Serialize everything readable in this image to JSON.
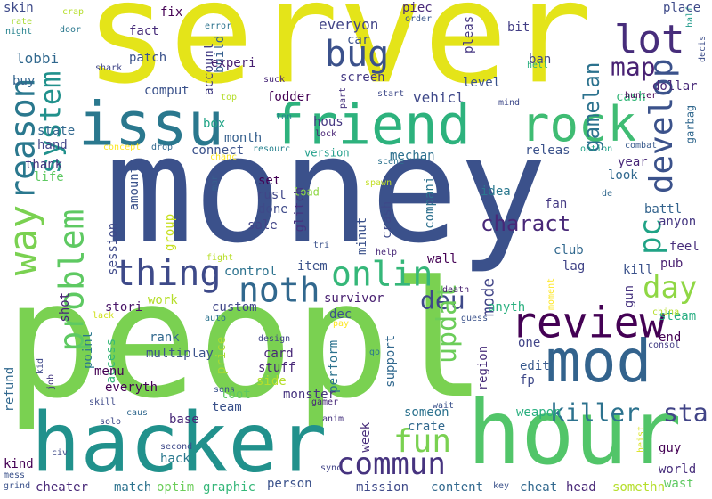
{
  "words": [
    {
      "text": "server",
      "color": "#e4e419"
    },
    {
      "text": "money",
      "color": "#3b518b"
    },
    {
      "text": "peopl",
      "color": "#7ad151"
    },
    {
      "text": "hacker",
      "color": "#21918c"
    },
    {
      "text": "hour",
      "color": "#52c569"
    },
    {
      "text": "issu",
      "color": "#2a788e"
    },
    {
      "text": "friend",
      "color": "#2db27d"
    },
    {
      "text": "rock",
      "color": "#3fbc73"
    },
    {
      "text": "mod",
      "color": "#33638d"
    },
    {
      "text": "review",
      "color": "#440154"
    },
    {
      "text": "way",
      "color": "#7ad151"
    },
    {
      "text": "reason",
      "color": "#2a788e"
    },
    {
      "text": "system",
      "color": "#21918c"
    },
    {
      "text": "problem",
      "color": "#5ec962"
    },
    {
      "text": "thing",
      "color": "#3e4a89"
    },
    {
      "text": "noth",
      "color": "#31688e"
    },
    {
      "text": "onlin",
      "color": "#35b779"
    },
    {
      "text": "bug",
      "color": "#3b518b"
    },
    {
      "text": "lot",
      "color": "#472d7b"
    },
    {
      "text": "map",
      "color": "#482173"
    },
    {
      "text": "develop",
      "color": "#3b528b"
    },
    {
      "text": "pc",
      "color": "#20a386"
    },
    {
      "text": "day",
      "color": "#8fd744"
    },
    {
      "text": "deu",
      "color": "#3e4989"
    },
    {
      "text": "commun",
      "color": "#46337f"
    },
    {
      "text": "fun",
      "color": "#7ad151"
    },
    {
      "text": "killer",
      "color": "#2c728e"
    },
    {
      "text": "sta",
      "color": "#414487"
    },
    {
      "text": "charact",
      "color": "#482878"
    },
    {
      "text": "updat",
      "color": "#6ccd5a"
    },
    {
      "text": "gamelan",
      "color": "#2c728e"
    },
    {
      "text": "mode",
      "color": "#414487"
    },
    {
      "text": "skin",
      "color": "#3e4a89"
    },
    {
      "text": "rate",
      "color": "#a8db34"
    },
    {
      "text": "night",
      "color": "#26828e"
    },
    {
      "text": "crap",
      "color": "#b5de2b"
    },
    {
      "text": "door",
      "color": "#2a788e"
    },
    {
      "text": "half",
      "color": "#1f9a8a"
    },
    {
      "text": "lobbi",
      "color": "#31688e"
    },
    {
      "text": "buy",
      "color": "#33638d"
    },
    {
      "text": "shark",
      "color": "#404688"
    },
    {
      "text": "fact",
      "color": "#472c7a"
    },
    {
      "text": "patch",
      "color": "#3b528b"
    },
    {
      "text": "fix",
      "color": "#440154"
    },
    {
      "text": "error",
      "color": "#2c738e"
    },
    {
      "text": "build",
      "color": "#355f8d"
    },
    {
      "text": "account",
      "color": "#433e85"
    },
    {
      "text": "experi",
      "color": "#482071"
    },
    {
      "text": "comput",
      "color": "#3b528b"
    },
    {
      "text": "top",
      "color": "#b5de2b"
    },
    {
      "text": "everyon",
      "color": "#414487"
    },
    {
      "text": "car",
      "color": "#3b528b"
    },
    {
      "text": "screen",
      "color": "#443983"
    },
    {
      "text": "piec",
      "color": "#482878"
    },
    {
      "text": "order",
      "color": "#39568c"
    },
    {
      "text": "bit",
      "color": "#433e85"
    },
    {
      "text": "ban",
      "color": "#3f4788"
    },
    {
      "text": "hell",
      "color": "#29af7f"
    },
    {
      "text": "place",
      "color": "#3e4a89"
    },
    {
      "text": "decis",
      "color": "#3d4e8a"
    },
    {
      "text": "dollar",
      "color": "#482979"
    },
    {
      "text": "cash",
      "color": "#35b779"
    },
    {
      "text": "hunter",
      "color": "#440154"
    },
    {
      "text": "mind",
      "color": "#3e4989"
    },
    {
      "text": "level",
      "color": "#3b528b"
    },
    {
      "text": "suck",
      "color": "#482878"
    },
    {
      "text": "start",
      "color": "#3e4989"
    },
    {
      "text": "pleas",
      "color": "#453781"
    },
    {
      "text": "vehicl",
      "color": "#3f4889"
    },
    {
      "text": "fodder",
      "color": "#440154"
    },
    {
      "text": "box",
      "color": "#20a486"
    },
    {
      "text": "month",
      "color": "#355f8d"
    },
    {
      "text": "hous",
      "color": "#453781"
    },
    {
      "text": "part",
      "color": "#46327e"
    },
    {
      "text": "ton",
      "color": "#24878e"
    },
    {
      "text": "lock",
      "color": "#482475"
    },
    {
      "text": "option",
      "color": "#1fa287"
    },
    {
      "text": "combat",
      "color": "#38598c"
    },
    {
      "text": "garbag",
      "color": "#31688e"
    },
    {
      "text": "state",
      "color": "#31688e"
    },
    {
      "text": "hand",
      "color": "#414487"
    },
    {
      "text": "concept",
      "color": "#fde725"
    },
    {
      "text": "drop",
      "color": "#31688e"
    },
    {
      "text": "chanc",
      "color": "#fde725"
    },
    {
      "text": "connect",
      "color": "#3b528b"
    },
    {
      "text": "resourc",
      "color": "#26828e"
    },
    {
      "text": "version",
      "color": "#1f9e89"
    },
    {
      "text": "mechan",
      "color": "#2d708e"
    },
    {
      "text": "scene",
      "color": "#2c728e"
    },
    {
      "text": "releas",
      "color": "#3b528b"
    },
    {
      "text": "year",
      "color": "#482878"
    },
    {
      "text": "look",
      "color": "#31688e"
    },
    {
      "text": "thank",
      "color": "#453781"
    },
    {
      "text": "life",
      "color": "#5ec962"
    },
    {
      "text": "amount",
      "color": "#3b528b"
    },
    {
      "text": "man",
      "color": "#355f8d"
    },
    {
      "text": "set",
      "color": "#440154"
    },
    {
      "text": "rust",
      "color": "#404688"
    },
    {
      "text": "done",
      "color": "#3e4a89"
    },
    {
      "text": "load",
      "color": "#8fd744"
    },
    {
      "text": "spawn",
      "color": "#c2df23"
    },
    {
      "text": "glitch",
      "color": "#46337f"
    },
    {
      "text": "crash",
      "color": "#3e4989"
    },
    {
      "text": "compani",
      "color": "#2d708e"
    },
    {
      "text": "idea",
      "color": "#2a788e"
    },
    {
      "text": "fan",
      "color": "#443983"
    },
    {
      "text": "battl",
      "color": "#33638d"
    },
    {
      "text": "anyon",
      "color": "#453781"
    },
    {
      "text": "de",
      "color": "#31688e"
    },
    {
      "text": "session",
      "color": "#3e4989"
    },
    {
      "text": "group",
      "color": "#c8e020"
    },
    {
      "text": "sale",
      "color": "#414487"
    },
    {
      "text": "minut",
      "color": "#3b518b"
    },
    {
      "text": "tri",
      "color": "#3b528b"
    },
    {
      "text": "help",
      "color": "#482878"
    },
    {
      "text": "wall",
      "color": "#440154"
    },
    {
      "text": "club",
      "color": "#31688e"
    },
    {
      "text": "lag",
      "color": "#414487"
    },
    {
      "text": "feel",
      "color": "#472d7b"
    },
    {
      "text": "pub",
      "color": "#481f70"
    },
    {
      "text": "kill",
      "color": "#3b528b"
    },
    {
      "text": "fight",
      "color": "#b8de29"
    },
    {
      "text": "item",
      "color": "#3b528b"
    },
    {
      "text": "control",
      "color": "#2c728e"
    },
    {
      "text": "shot",
      "color": "#482475"
    },
    {
      "text": "work",
      "color": "#b5de2b"
    },
    {
      "text": "stori",
      "color": "#481467"
    },
    {
      "text": "custom",
      "color": "#404688"
    },
    {
      "text": "survivor",
      "color": "#481f70"
    },
    {
      "text": "dec",
      "color": "#3b528b"
    },
    {
      "text": "death",
      "color": "#482071"
    },
    {
      "text": "moment",
      "color": "#fde725"
    },
    {
      "text": "gun",
      "color": "#46337f"
    },
    {
      "text": "anyth",
      "color": "#2ab07f"
    },
    {
      "text": "steam",
      "color": "#26ad81"
    },
    {
      "text": "china",
      "color": "#b5de2b"
    },
    {
      "text": "lack",
      "color": "#d0e11c"
    },
    {
      "text": "auto",
      "color": "#2c728e"
    },
    {
      "text": "pay",
      "color": "#fde725"
    },
    {
      "text": "guess",
      "color": "#3b528b"
    },
    {
      "text": "end",
      "color": "#440154"
    },
    {
      "text": "one",
      "color": "#414487"
    },
    {
      "text": "rank",
      "color": "#31688e"
    },
    {
      "text": "design",
      "color": "#414487"
    },
    {
      "text": "card",
      "color": "#482878"
    },
    {
      "text": "go",
      "color": "#2a788e"
    },
    {
      "text": "price",
      "color": "#a8db34"
    },
    {
      "text": "region",
      "color": "#472c7a"
    },
    {
      "text": "consol",
      "color": "#433e85"
    },
    {
      "text": "point",
      "color": "#2a788e"
    },
    {
      "text": "access",
      "color": "#35b779"
    },
    {
      "text": "multiplay",
      "color": "#3b528b"
    },
    {
      "text": "stuff",
      "color": "#482878"
    },
    {
      "text": "side",
      "color": "#b5de2b"
    },
    {
      "text": "perform",
      "color": "#2c728e"
    },
    {
      "text": "support",
      "color": "#31688e"
    },
    {
      "text": "edit",
      "color": "#38598c"
    },
    {
      "text": "fp",
      "color": "#3e4989"
    },
    {
      "text": "kid",
      "color": "#3e4989"
    },
    {
      "text": "menu",
      "color": "#440154"
    },
    {
      "text": "sens",
      "color": "#3b528b"
    },
    {
      "text": "refund",
      "color": "#31688e"
    },
    {
      "text": "job",
      "color": "#453781"
    },
    {
      "text": "skill",
      "color": "#3e4989"
    },
    {
      "text": "everyth",
      "color": "#440154"
    },
    {
      "text": "solo",
      "color": "#3e4989"
    },
    {
      "text": "caus",
      "color": "#31688e"
    },
    {
      "text": "team",
      "color": "#3b528b"
    },
    {
      "text": "monster",
      "color": "#46337f"
    },
    {
      "text": "loot",
      "color": "#5ec962"
    },
    {
      "text": "gamer",
      "color": "#482878"
    },
    {
      "text": "anim",
      "color": "#46337f"
    },
    {
      "text": "wait",
      "color": "#3b528b"
    },
    {
      "text": "someon",
      "color": "#2c728e"
    },
    {
      "text": "weapon",
      "color": "#29af7f"
    },
    {
      "text": "base",
      "color": "#482878"
    },
    {
      "text": "hack",
      "color": "#2a788e"
    },
    {
      "text": "crate",
      "color": "#31688e"
    },
    {
      "text": "heist",
      "color": "#d8e219"
    },
    {
      "text": "guy",
      "color": "#440154"
    },
    {
      "text": "world",
      "color": "#472d7b"
    },
    {
      "text": "kind",
      "color": "#440154"
    },
    {
      "text": "mess",
      "color": "#3b528b"
    },
    {
      "text": "civ",
      "color": "#3e4989"
    },
    {
      "text": "second",
      "color": "#3e4989"
    },
    {
      "text": "week",
      "color": "#472c7a"
    },
    {
      "text": "sync",
      "color": "#414487"
    },
    {
      "text": "grind",
      "color": "#3b528b"
    },
    {
      "text": "cheater",
      "color": "#482878"
    },
    {
      "text": "match",
      "color": "#2c728e"
    },
    {
      "text": "optim",
      "color": "#6ccd5a"
    },
    {
      "text": "graphic",
      "color": "#35b779"
    },
    {
      "text": "person",
      "color": "#3b528b"
    },
    {
      "text": "mission",
      "color": "#3e4989"
    },
    {
      "text": "content",
      "color": "#31688e"
    },
    {
      "text": "key",
      "color": "#3b528b"
    },
    {
      "text": "cheat",
      "color": "#31688e"
    },
    {
      "text": "head",
      "color": "#482878"
    },
    {
      "text": "somethn",
      "color": "#b5de2b"
    },
    {
      "text": "wast",
      "color": "#5ec962"
    }
  ]
}
